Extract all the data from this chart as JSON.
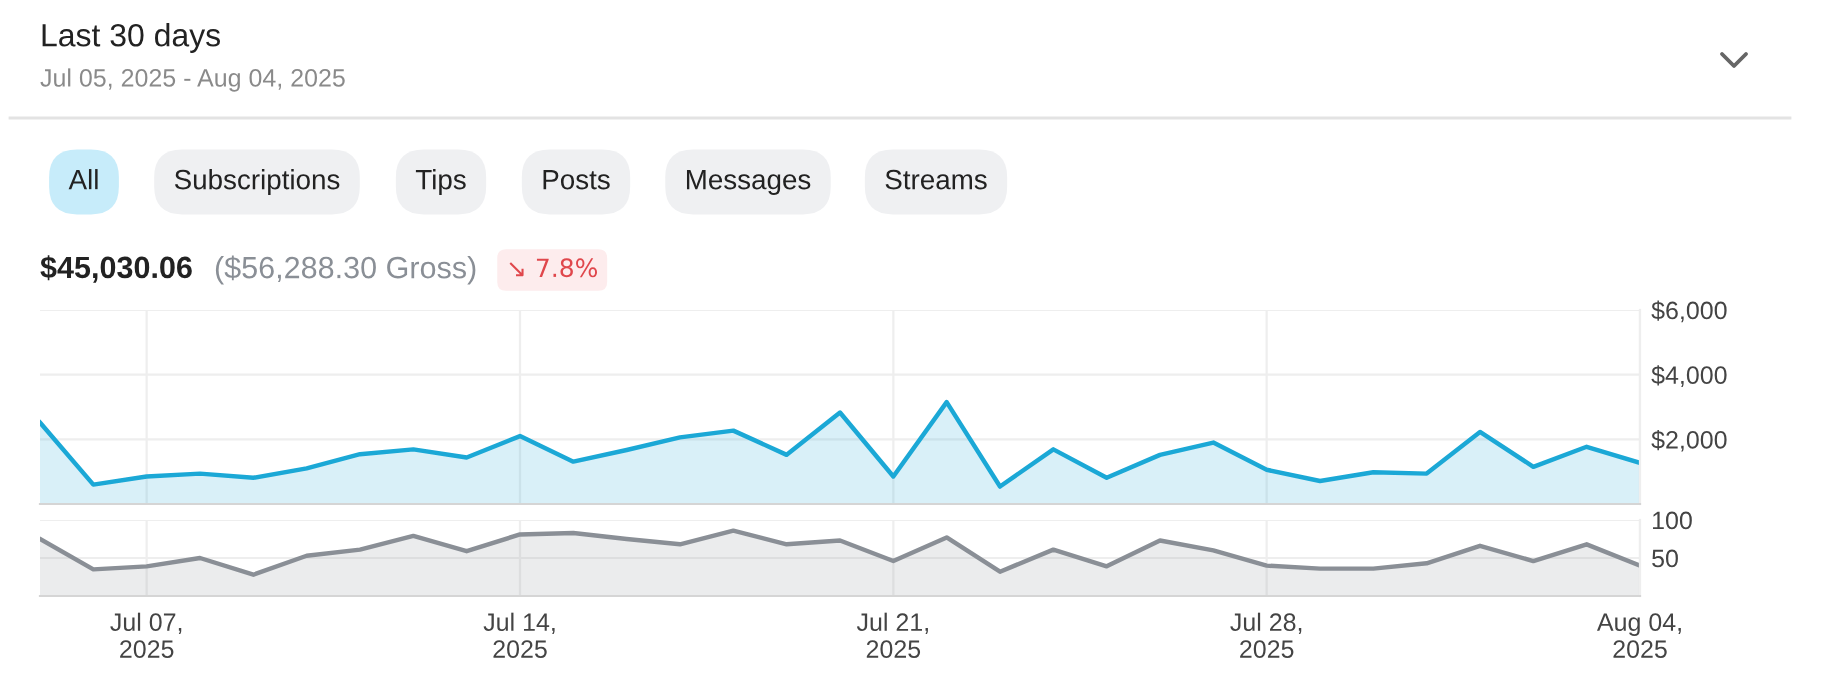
{
  "chart_data": [
    {
      "type": "area",
      "title": "Last 30 days",
      "subtitle": "Jul 05, 2025 - Aug 04, 2025",
      "annotations": [
        "All",
        "Subscriptions",
        "Tips",
        "Posts",
        "Messages",
        "Streams",
        "$45,030.06",
        "($56,288.30 Gross)",
        "↘ 7.8%"
      ],
      "x": [
        "2025-07-05",
        "2025-07-06",
        "2025-07-07",
        "2025-07-08",
        "2025-07-09",
        "2025-07-10",
        "2025-07-11",
        "2025-07-12",
        "2025-07-13",
        "2025-07-14",
        "2025-07-15",
        "2025-07-16",
        "2025-07-17",
        "2025-07-18",
        "2025-07-19",
        "2025-07-20",
        "2025-07-21",
        "2025-07-22",
        "2025-07-23",
        "2025-07-24",
        "2025-07-25",
        "2025-07-26",
        "2025-07-27",
        "2025-07-28",
        "2025-07-29",
        "2025-07-30",
        "2025-07-31",
        "2025-08-01",
        "2025-08-02",
        "2025-08-03",
        "2025-08-04"
      ],
      "series": [
        {
          "color": "#1ba8d6",
          "values": [
            2520,
            600,
            850,
            940,
            810,
            1100,
            1540,
            1690,
            1440,
            2100,
            1310,
            1670,
            2060,
            2270,
            1520,
            2830,
            850,
            3150,
            540,
            1690,
            810,
            1520,
            1900,
            1060,
            710,
            980,
            940,
            2230,
            1150,
            1770,
            1270
          ]
        }
      ],
      "xlim": [
        "2025-07-05",
        "2025-08-04"
      ],
      "xticks": [
        {
          "value": "2025-07-07",
          "label": null
        },
        {
          "value": "2025-07-14",
          "label": null
        },
        {
          "value": "2025-07-21",
          "label": null
        },
        {
          "value": "2025-07-28",
          "label": null
        },
        {
          "value": "2025-08-04",
          "label": null
        }
      ],
      "ylim": [
        0,
        6000
      ],
      "yticks": [
        {
          "value": 0,
          "label": null
        },
        {
          "value": 2000,
          "label": "$2,000"
        },
        {
          "value": 4000,
          "label": "$4,000"
        },
        {
          "value": 6000,
          "label": "$6,000"
        }
      ],
      "grid": true,
      "tick_labels": "y"
    },
    {
      "type": "area",
      "x": [
        "2025-07-05",
        "2025-07-06",
        "2025-07-07",
        "2025-07-08",
        "2025-07-09",
        "2025-07-10",
        "2025-07-11",
        "2025-07-12",
        "2025-07-13",
        "2025-07-14",
        "2025-07-15",
        "2025-07-16",
        "2025-07-17",
        "2025-07-18",
        "2025-07-19",
        "2025-07-20",
        "2025-07-21",
        "2025-07-22",
        "2025-07-23",
        "2025-07-24",
        "2025-07-25",
        "2025-07-26",
        "2025-07-27",
        "2025-07-28",
        "2025-07-29",
        "2025-07-30",
        "2025-07-31",
        "2025-08-01",
        "2025-08-02",
        "2025-08-03",
        "2025-08-04"
      ],
      "series": [
        {
          "color": "#8a8f96",
          "values": [
            75,
            35,
            39,
            50,
            28,
            53,
            61,
            79,
            59,
            81,
            83,
            75,
            68,
            86,
            68,
            73,
            46,
            77,
            32,
            61,
            39,
            73,
            60,
            40,
            36,
            36,
            43,
            66,
            46,
            68,
            40
          ]
        }
      ],
      "xlim": [
        "2025-07-05",
        "2025-08-04"
      ],
      "xticks": [
        {
          "value": "2025-07-07",
          "label": "Jul 07,\n2025"
        },
        {
          "value": "2025-07-14",
          "label": "Jul 14,\n2025"
        },
        {
          "value": "2025-07-21",
          "label": "Jul 21,\n2025"
        },
        {
          "value": "2025-07-28",
          "label": "Jul 28,\n2025"
        },
        {
          "value": "2025-08-04",
          "label": "Aug 04,\n2025"
        }
      ],
      "ylim": [
        0,
        100
      ],
      "yticks": [
        {
          "value": 0,
          "label": null
        },
        {
          "value": 50,
          "label": "50"
        },
        {
          "value": 100,
          "label": "100"
        }
      ],
      "grid": true
    }
  ]
}
